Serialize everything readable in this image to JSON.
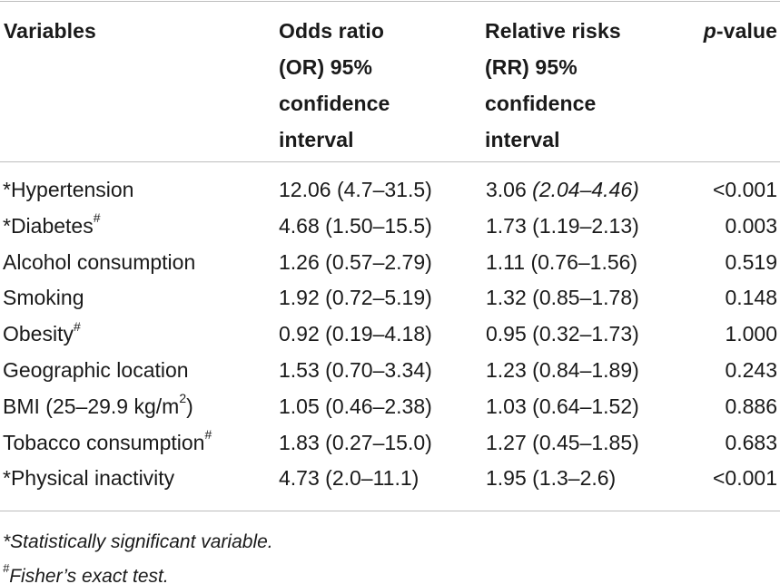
{
  "table": {
    "header": {
      "variables": "Variables",
      "or_lines": [
        "Odds ratio",
        "(OR) 95%",
        "confidence",
        "interval"
      ],
      "rr_lines": [
        "Relative risks",
        "(RR) 95%",
        "confidence",
        "interval"
      ],
      "p_italic": "p",
      "p_rest": "-value"
    },
    "rows": [
      {
        "variable": "*Hypertension",
        "sup": "",
        "variable_suffix": "",
        "or": "12.06 (4.7–31.5)",
        "rr_main": "3.06 ",
        "rr_italic": "(2.04–4.46)",
        "p": "<0.001"
      },
      {
        "variable": "*Diabetes",
        "sup": "#",
        "variable_suffix": "",
        "or": "4.68 (1.50–15.5)",
        "rr_main": "1.73 (1.19–2.13)",
        "rr_italic": "",
        "p": "0.003"
      },
      {
        "variable": "Alcohol consumption",
        "sup": "",
        "variable_suffix": "",
        "or": "1.26 (0.57–2.79)",
        "rr_main": "1.11 (0.76–1.56)",
        "rr_italic": "",
        "p": "0.519"
      },
      {
        "variable": "Smoking",
        "sup": "",
        "variable_suffix": "",
        "or": "1.92 (0.72–5.19)",
        "rr_main": "1.32 (0.85–1.78)",
        "rr_italic": "",
        "p": "0.148"
      },
      {
        "variable": "Obesity",
        "sup": "#",
        "variable_suffix": "",
        "or": "0.92 (0.19–4.18)",
        "rr_main": "0.95 (0.32–1.73)",
        "rr_italic": "",
        "p": "1.000"
      },
      {
        "variable": "Geographic location",
        "sup": "",
        "variable_suffix": "",
        "or": "1.53 (0.70–3.34)",
        "rr_main": "1.23 (0.84–1.89)",
        "rr_italic": "",
        "p": "0.243"
      },
      {
        "variable": "BMI (25–29.9 kg/m",
        "sup": "2",
        "variable_suffix": ")",
        "or": "1.05 (0.46–2.38)",
        "rr_main": "1.03 (0.64–1.52)",
        "rr_italic": "",
        "p": "0.886"
      },
      {
        "variable": "Tobacco consumption",
        "sup": "#",
        "variable_suffix": "",
        "or": "1.83 (0.27–15.0)",
        "rr_main": "1.27 (0.45–1.85)",
        "rr_italic": "",
        "p": "0.683"
      },
      {
        "variable": "*Physical inactivity",
        "sup": "",
        "variable_suffix": "",
        "or": "4.73 (2.0–11.1)",
        "rr_main": "1.95 (1.3–2.6)",
        "rr_italic": "",
        "p": "<0.001"
      }
    ]
  },
  "footnotes": {
    "significant": "*Statistically significant variable.",
    "fisher_mark": "#",
    "fisher_text": "Fisher’s exact test."
  }
}
